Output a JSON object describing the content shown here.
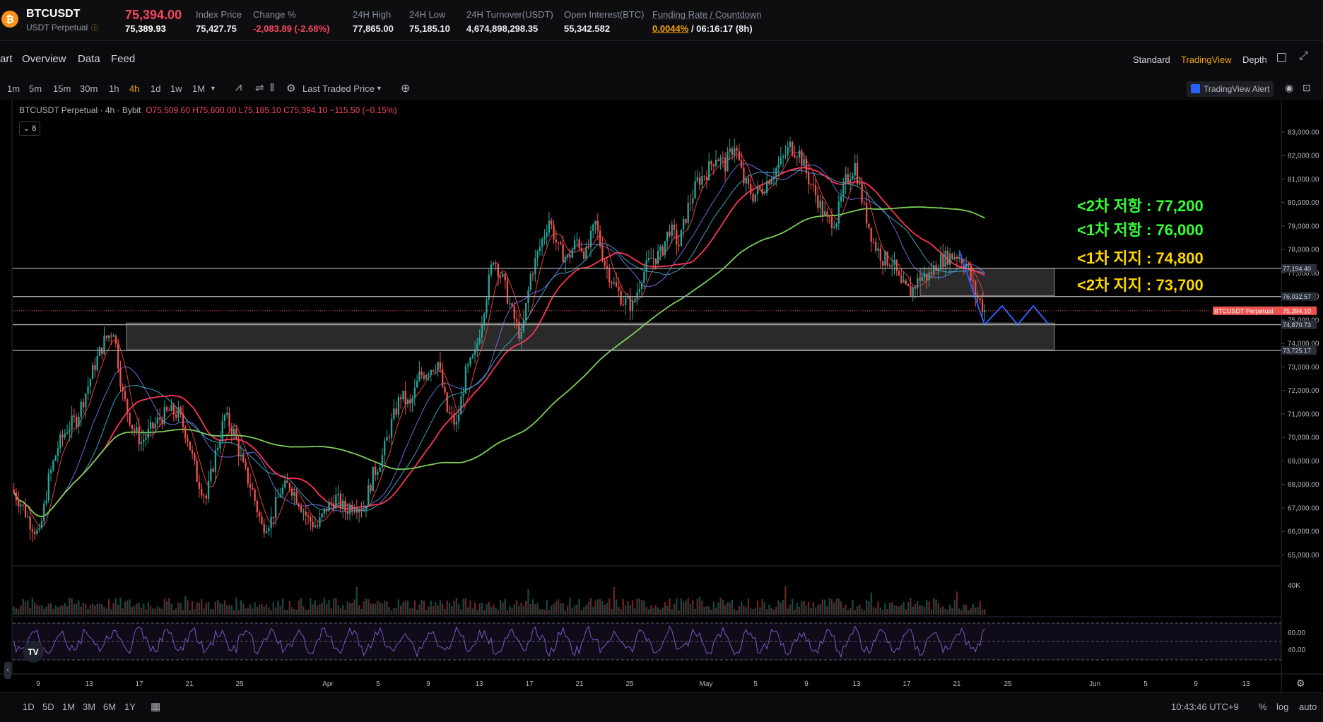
{
  "header": {
    "coin_icon": "bitcoin-icon",
    "symbol": "BTCUSDT",
    "contract": "USDT Perpetual",
    "last_price": "75,394.00",
    "mark_price": "75,389.93",
    "stats": [
      {
        "label": "Index Price",
        "value": "75,427.75"
      },
      {
        "label": "Change %",
        "value": "-2,083.89 (-2.68%)"
      },
      {
        "label": "24H High",
        "value": "77,865.00"
      },
      {
        "label": "24H Low",
        "value": "75,185.10"
      },
      {
        "label": "24H Turnover(USDT)",
        "value": "4,674,898,298.35"
      },
      {
        "label": "Open Interest(BTC)",
        "value": "55,342.582"
      }
    ],
    "funding": {
      "label": "Funding Rate / Countdown",
      "rate": "0.0044%",
      "countdown": " / 06:16:17 (8h)"
    }
  },
  "nav": {
    "tabs": [
      "art",
      "Overview",
      "Data",
      "Feed"
    ],
    "views": [
      "Standard",
      "TradingView",
      "Depth"
    ],
    "active_view": "TradingView"
  },
  "toolbar": {
    "timeframes": [
      "1m",
      "5m",
      "15m",
      "30m",
      "1h",
      "4h",
      "1d",
      "1w",
      "1M"
    ],
    "active_timeframe": "4h",
    "price_source": "Last Traded Price",
    "alert": "TradingView Alert"
  },
  "legend": {
    "title": "BTCUSDT Perpetual · 4h · Bybit",
    "open": "O75,509.60",
    "high": "H75,600.00",
    "low": "L75,185.10",
    "close": "C75,394.10",
    "change": "−115.50 (−0.15%)",
    "indicators_count": "8"
  },
  "chart_data": {
    "type": "candlestick",
    "ylim": [
      64800,
      83300
    ],
    "y_ticks": [
      "83,000.00",
      "82,000.00",
      "81,000.00",
      "80,000.00",
      "79,000.00",
      "78,000.00",
      "77,000.00",
      "76,000.00",
      "75,000.00",
      "74,000.00",
      "73,000.00",
      "72,000.00",
      "71,000.00",
      "70,000.00",
      "69,000.00",
      "68,000.00",
      "67,000.00",
      "66,000.00",
      "65,000.00"
    ],
    "x_ticks": [
      "9",
      "13",
      "17",
      "21",
      "25",
      "Apr",
      "5",
      "9",
      "13",
      "17",
      "21",
      "25",
      "May",
      "5",
      "9",
      "13",
      "17",
      "21",
      "25",
      "Jun",
      "5",
      "9",
      "13"
    ],
    "price_path": [
      67800,
      67200,
      66400,
      65800,
      68200,
      69600,
      70400,
      70800,
      71900,
      73100,
      74100,
      74600,
      71800,
      70500,
      69800,
      70300,
      70800,
      71100,
      71000,
      70000,
      68300,
      67400,
      69300,
      70900,
      70200,
      68700,
      67700,
      66200,
      66500,
      67700,
      68000,
      67300,
      66500,
      66200,
      67000,
      67400,
      66900,
      67200,
      67000,
      68400,
      69200,
      70600,
      71800,
      71300,
      72600,
      72900,
      73200,
      71100,
      70500,
      72700,
      73500,
      75600,
      77700,
      76700,
      75300,
      74200,
      76900,
      78100,
      79300,
      78000,
      77600,
      78400,
      77800,
      79100,
      77400,
      76500,
      75800,
      75600,
      76900,
      77600,
      77800,
      78900,
      78200,
      79800,
      80900,
      81300,
      82000,
      81600,
      82500,
      80900,
      80300,
      80600,
      81200,
      81700,
      82400,
      82100,
      81000,
      80100,
      79200,
      79300,
      80900,
      81600,
      79700,
      78300,
      77600,
      77500,
      76400,
      76200,
      76800,
      76900,
      77500,
      77700,
      77800,
      77400,
      76100,
      75400
    ],
    "levels": [
      {
        "label": "<2차 저항 : 77,200",
        "price": 77200,
        "tag": "77,194.40",
        "color": "#33ff33"
      },
      {
        "label": "<1차 저항 : 76,000",
        "price": 76000,
        "tag": "76,032.57",
        "color": "#33ff33"
      },
      {
        "label": "<1차 지지 : 74,800",
        "price": 74800,
        "tag": "74,870.73",
        "color": "#ffd700"
      },
      {
        "label": "<2차 지지 : 73,700",
        "price": 73700,
        "tag": "73,725.17",
        "color": "#ffd700"
      }
    ],
    "current_price_tag": {
      "symbol": "BTCUSDT Perpetual",
      "price": "75,394.10",
      "value": 75394.1
    },
    "volume_label": "40K",
    "rsi_ticks": [
      "60.00",
      "40.00"
    ]
  },
  "bottom": {
    "ranges": [
      "1D",
      "5D",
      "1M",
      "3M",
      "6M",
      "1Y"
    ],
    "clock": "10:43:46 UTC+9",
    "percent": "%",
    "log": "log",
    "auto": "auto"
  },
  "colors": {
    "up": "#26a69a",
    "down": "#ef5350",
    "accent": "#f7a600"
  }
}
